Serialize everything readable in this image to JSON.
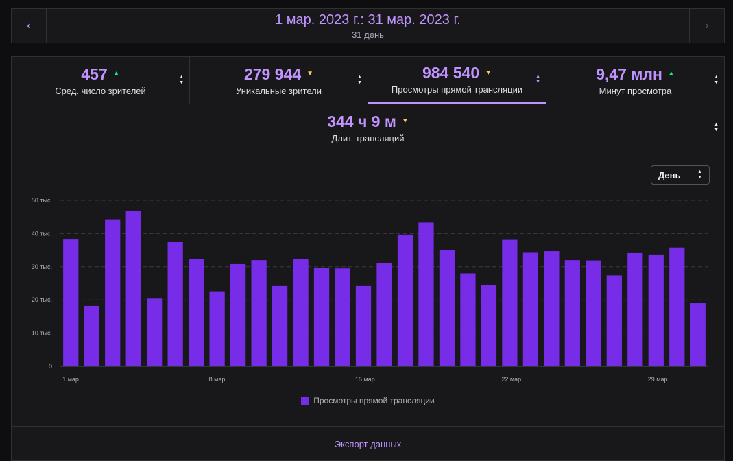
{
  "date_nav": {
    "prev_icon": "chevron-left-icon",
    "next_icon": "chevron-right-icon",
    "prev_glyph": "‹",
    "next_glyph": "›",
    "range": "1 мар. 2023 г.: 31 мар. 2023 г.",
    "days": "31 день"
  },
  "metrics": [
    {
      "value": "457",
      "label": "Сред. число зрителей",
      "trend": "up"
    },
    {
      "value": "279 944",
      "label": "Уникальные зрители",
      "trend": "down"
    },
    {
      "value": "984 540",
      "label": "Просмотры прямой трансляции",
      "trend": "down",
      "active": true
    },
    {
      "value": "9,47 млн",
      "label": "Минут просмотра",
      "trend": "up"
    },
    {
      "value": "344 ч 9 м",
      "label": "Длит. трансляций",
      "trend": "down"
    }
  ],
  "granularity": {
    "label": "День"
  },
  "export_label": "Экспорт данных",
  "colors": {
    "accent": "#bf94ff",
    "bar": "#772ce8",
    "trend_up": "#00f593",
    "trend_down": "#ffca5f"
  },
  "chart_data": {
    "type": "bar",
    "categories": [
      "1 мар.",
      "2 мар.",
      "3 мар.",
      "4 мар.",
      "5 мар.",
      "6 мар.",
      "7 мар.",
      "8 мар.",
      "9 мар.",
      "10 мар.",
      "11 мар.",
      "12 мар.",
      "13 мар.",
      "14 мар.",
      "15 мар.",
      "16 мар.",
      "17 мар.",
      "18 мар.",
      "19 мар.",
      "20 мар.",
      "21 мар.",
      "22 мар.",
      "23 мар.",
      "24 мар.",
      "25 мар.",
      "26 мар.",
      "27 мар.",
      "28 мар.",
      "29 мар.",
      "30 мар.",
      "31 мар."
    ],
    "series": [
      {
        "name": "Просмотры прямой трансляции",
        "values": [
          38200,
          18200,
          44300,
          46800,
          20400,
          37400,
          32400,
          22600,
          30800,
          32000,
          24200,
          32400,
          29600,
          29500,
          24200,
          31000,
          39700,
          43300,
          35000,
          28000,
          24400,
          38100,
          34200,
          34700,
          32000,
          31900,
          27400,
          34100,
          33700,
          35800,
          19000
        ]
      }
    ],
    "ylim": [
      0,
      50000
    ],
    "yticks": [
      0,
      10000,
      20000,
      30000,
      40000,
      50000
    ],
    "ytick_labels": [
      "0",
      "10 тыс.",
      "20 тыс.",
      "30 тыс.",
      "40 тыс.",
      "50 тыс."
    ],
    "xtick_labels": [
      {
        "index": 0,
        "label": "1 мар."
      },
      {
        "index": 7,
        "label": "8 мар."
      },
      {
        "index": 14,
        "label": "15 мар."
      },
      {
        "index": 21,
        "label": "22 мар."
      },
      {
        "index": 28,
        "label": "29 мар."
      }
    ],
    "grid": true,
    "legend_position": "bottom-center"
  }
}
